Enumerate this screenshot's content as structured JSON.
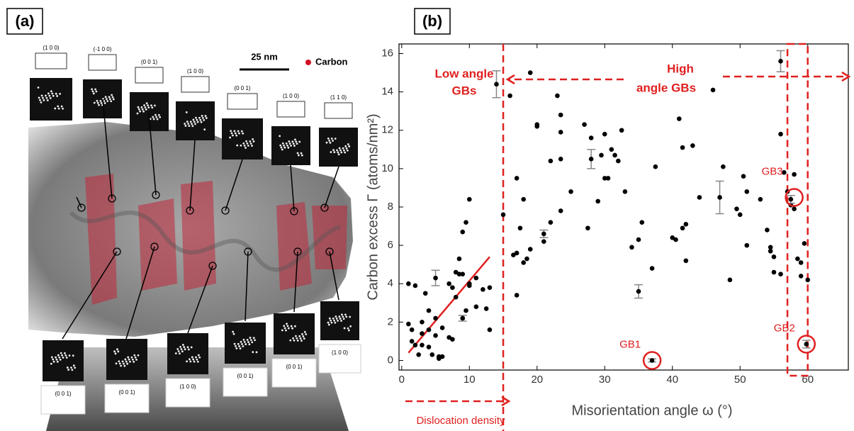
{
  "panel_a": {
    "label": "(a)",
    "scale_bar": "25 nm",
    "legend": "Carbon",
    "top_insets": [
      "(1 0 0)",
      "(-1 0 0)",
      "(0 0 1)",
      "(1 0 0)",
      "(0 0 1)",
      "(1 0 0)",
      "(1 1 0)"
    ],
    "bottom_insets": [
      "(0 0 1)",
      "(0 0 1)",
      "(1 0 0)",
      "(0 0 1)",
      "(0 0 1)",
      "(1 0 0)"
    ]
  },
  "chart_data": {
    "type": "scatter",
    "panel_label": "(b)",
    "x_label": "Misorientation angle ω (°)",
    "y_label": "Carbon excess Γ (atoms/nm²)",
    "xlim": [
      -0.4,
      66
    ],
    "ylim": [
      -0.5,
      16.5
    ],
    "xticks": [
      0,
      10,
      20,
      30,
      40,
      50,
      60
    ],
    "yticks": [
      0,
      2,
      4,
      6,
      8,
      10,
      12,
      14,
      16
    ],
    "series": [
      {
        "color": "#000000",
        "x": [
          1,
          1,
          1.5,
          1.5,
          2,
          2,
          2.5,
          3,
          3,
          3,
          3.5,
          4,
          4,
          4,
          4.5,
          5,
          5,
          5.5,
          5.5,
          6,
          6,
          7,
          7,
          7.5,
          7.5,
          8,
          8,
          8.5,
          8.5,
          9,
          9,
          9,
          9.5,
          9.5,
          10,
          10,
          10,
          11,
          11,
          12,
          12.5,
          13,
          13,
          15,
          16,
          16.5,
          17,
          17,
          17,
          17.5,
          18,
          18,
          18.5,
          19,
          19,
          20,
          20,
          21,
          22,
          22,
          23,
          23.5,
          23.5,
          23.5,
          23.5,
          25,
          27,
          27.5,
          28,
          29,
          29.5,
          30,
          30,
          30.5,
          31,
          31.5,
          32,
          32.5,
          33,
          34,
          35,
          35.5,
          37,
          37.5,
          40,
          40.5,
          41,
          41.5,
          41.5,
          42,
          42,
          43,
          44,
          46,
          47.5,
          48.5,
          49.5,
          50,
          50.5,
          51,
          51,
          53,
          54,
          54.5,
          54.5,
          55,
          55,
          56,
          56,
          56.5,
          57,
          57.5,
          58,
          58,
          58.5,
          59,
          59,
          59.5,
          60
        ],
        "values": [
          4,
          1.9,
          1.6,
          1,
          3.9,
          0.8,
          0.3,
          2,
          1.4,
          0.8,
          3.5,
          2.6,
          0.7,
          1.6,
          0.3,
          2.2,
          1.3,
          0.1,
          0.2,
          1.7,
          0.2,
          4,
          1.2,
          3.8,
          1.1,
          4.6,
          3.3,
          5.3,
          4.5,
          6.7,
          4.5,
          2.2,
          7.2,
          2.6,
          8.4,
          4,
          3.9,
          4.3,
          2.8,
          3.7,
          2.7,
          1.6,
          3.8,
          7.6,
          13.8,
          5.5,
          9.5,
          5.6,
          3.4,
          6.9,
          5.1,
          8.4,
          5.3,
          15,
          5.8,
          12.2,
          12.3,
          6.2,
          10.4,
          7.2,
          13.8,
          12.8,
          11.9,
          10.5,
          7.8,
          8.8,
          12.3,
          6.9,
          11.6,
          8.3,
          10.7,
          11.8,
          9.5,
          9.5,
          11,
          10.7,
          10.4,
          12,
          8.8,
          5.9,
          6.3,
          7.2,
          4.8,
          10.1,
          6.4,
          6.3,
          12.6,
          11.1,
          6.9,
          7.1,
          5.2,
          11.2,
          8.5,
          14.1,
          10.1,
          4.2,
          7.9,
          7.6,
          9.6,
          8.8,
          6,
          8.4,
          6.8,
          5.9,
          5.7,
          4.6,
          5.4,
          11.8,
          4.5,
          9.8,
          8.8,
          8.1,
          7.9,
          9.7,
          5.3,
          5.1,
          4.4,
          6.1,
          4.2
        ]
      }
    ],
    "error_bars": {
      "color": "#888888",
      "x": [
        5,
        9,
        14,
        21,
        28,
        35,
        37,
        47,
        56,
        57.5,
        59.8
      ],
      "values": [
        4.3,
        2.2,
        14.4,
        6.6,
        10.5,
        3.6,
        0,
        8.5,
        15.6,
        8.4,
        0.85
      ],
      "errors": [
        0.4,
        0.15,
        0.7,
        0.2,
        0.5,
        0.35,
        0.08,
        0.85,
        0.55,
        0.2,
        0.2
      ]
    },
    "fit_line": {
      "color": "#e02020",
      "x": [
        1,
        13
      ],
      "values": [
        0.4,
        5.4
      ]
    },
    "boundary_angle": 15,
    "gb_box": {
      "x": [
        57,
        60
      ]
    },
    "annotation_color": "#e02020",
    "low_angle_label": [
      "Low angle",
      "GBs"
    ],
    "high_angle_label": [
      "High",
      "angle GBs"
    ],
    "dislocation_label": "Dislocation density",
    "highlights": [
      {
        "label": "GB1",
        "x": 37,
        "value": 0
      },
      {
        "label": "GB2",
        "x": 59.8,
        "value": 0.85
      },
      {
        "label": "GB3",
        "x": 58,
        "value": 8.5
      }
    ]
  }
}
